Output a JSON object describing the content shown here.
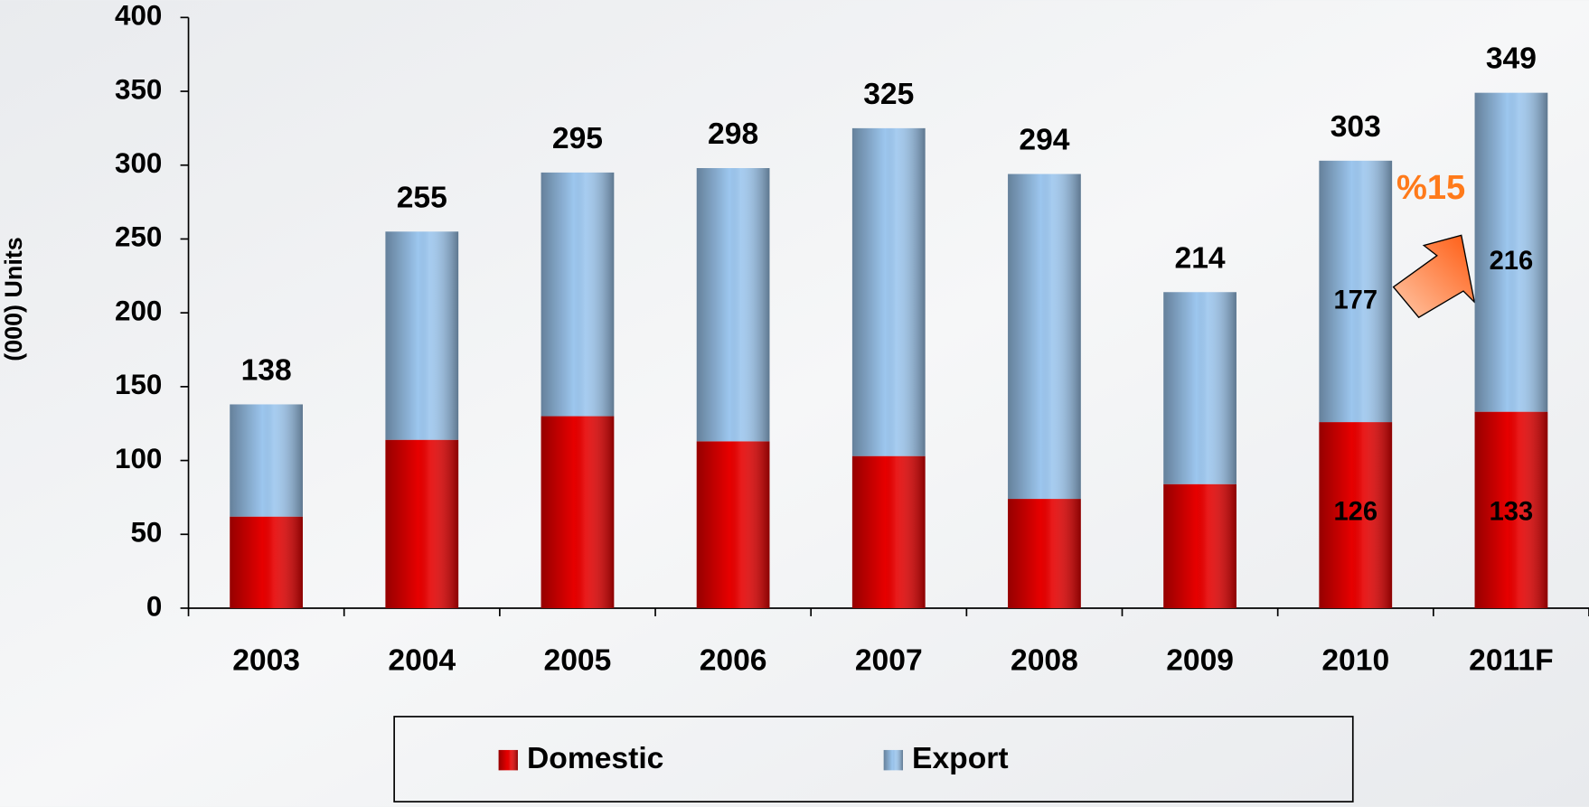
{
  "chart_data": {
    "type": "stacked_bar",
    "y_label": "(000) Units",
    "categories": [
      "2003",
      "2004",
      "2005",
      "2006",
      "2007",
      "2008",
      "2009",
      "2010",
      "2011F"
    ],
    "series": [
      {
        "name": "Domestic",
        "color": "#e60000",
        "values": [
          62,
          114,
          130,
          113,
          103,
          74,
          84,
          126,
          133
        ],
        "value_labels": [
          null,
          null,
          null,
          null,
          null,
          null,
          null,
          "126",
          "133"
        ]
      },
      {
        "name": "Export",
        "color": "#9cc6ee",
        "values": [
          76,
          141,
          165,
          185,
          222,
          220,
          130,
          177,
          216
        ],
        "value_labels": [
          null,
          null,
          null,
          null,
          null,
          null,
          null,
          "177",
          "216"
        ]
      }
    ],
    "totals": [
      138,
      255,
      295,
      298,
      325,
      294,
      214,
      303,
      349
    ],
    "annotation": "%15",
    "ylim": [
      0,
      400
    ],
    "yticks": [
      0,
      50,
      100,
      150,
      200,
      250,
      300,
      350,
      400
    ],
    "legend": "bottom"
  }
}
